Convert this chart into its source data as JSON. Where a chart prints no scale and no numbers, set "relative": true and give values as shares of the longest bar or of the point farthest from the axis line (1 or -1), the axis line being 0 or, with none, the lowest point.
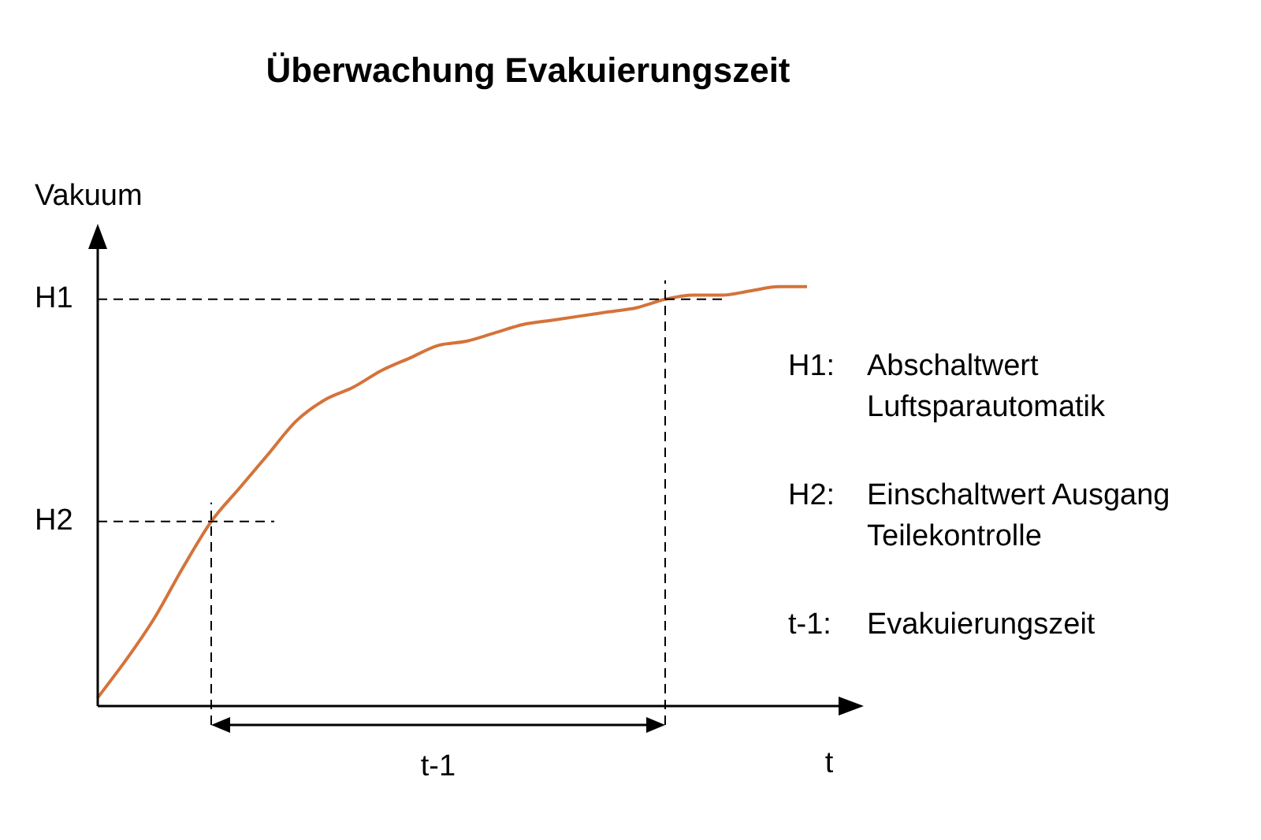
{
  "chart_data": {
    "type": "line",
    "title": "Überwachung Evakuierungszeit",
    "xlabel": "t",
    "ylabel": "Vakuum",
    "relative": true,
    "categories": [
      null,
      null,
      null,
      null,
      null,
      null,
      null,
      null,
      null,
      null,
      null,
      null,
      null,
      null,
      null,
      null,
      null,
      null,
      null,
      null,
      null,
      null,
      null,
      null,
      null,
      null
    ],
    "series": [
      {
        "color": "#d4733a",
        "values": [
          0.02,
          0.11,
          0.21,
          0.33,
          0.44,
          0.52,
          0.6,
          0.68,
          0.73,
          0.76,
          0.8,
          0.83,
          0.86,
          0.87,
          0.89,
          0.91,
          0.92,
          0.93,
          0.94,
          0.95,
          0.97,
          0.98,
          0.98,
          0.99,
          1,
          1
        ]
      }
    ],
    "ref_lines": [
      {
        "axis": "y",
        "value": 0.97,
        "label": "H1",
        "line_style": "dashed"
      },
      {
        "axis": "y",
        "value": 0.44,
        "label": "H2",
        "line_style": "dashed"
      }
    ],
    "annotations": [
      "t-1",
      "H1: Abschaltwert Luftsparautomatik",
      "H2: Einschaltwert Ausgang Teilekontrolle",
      "t-1: Evakuierungszeit"
    ],
    "marker": "none",
    "line_style": "solid",
    "legend": false
  }
}
